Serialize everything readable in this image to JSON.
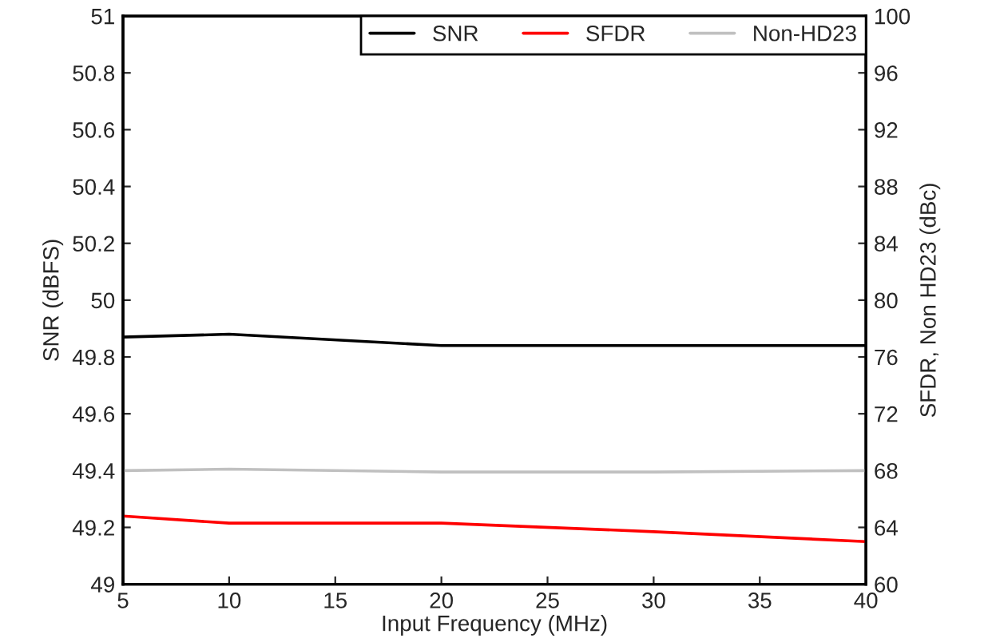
{
  "chart_data": {
    "type": "line",
    "xlabel": "Input Frequency (MHz)",
    "ylabel": "SNR (dBFS)",
    "y2label": "SFDR, Non HD23 (dBc)",
    "x": [
      5,
      10,
      20,
      30,
      40
    ],
    "series": [
      {
        "name": "SNR",
        "color": "#000000",
        "values": [
          49.87,
          49.88,
          49.84,
          49.84,
          49.84
        ]
      },
      {
        "name": "SFDR",
        "color": "#ff0000",
        "axis": "y2",
        "values": [
          64.8,
          64.3,
          64.3,
          63.7,
          63.0
        ]
      },
      {
        "name": "Non-HD23",
        "color": "#c0c0c0",
        "axis": "y2",
        "values": [
          68,
          68.1,
          67.9,
          67.9,
          68
        ]
      }
    ],
    "xlim": [
      5,
      40
    ],
    "xticks": [
      5,
      10,
      15,
      20,
      25,
      30,
      35,
      40
    ],
    "ylim": [
      49,
      51
    ],
    "yticks": [
      49,
      49.2,
      49.4,
      49.6,
      49.8,
      50,
      50.2,
      50.4,
      50.6,
      50.8,
      51
    ],
    "y2lim": [
      60,
      100
    ],
    "y2ticks": [
      60,
      64,
      68,
      72,
      76,
      80,
      84,
      88,
      92,
      96,
      100
    ],
    "legend": "top right",
    "grid": false
  }
}
